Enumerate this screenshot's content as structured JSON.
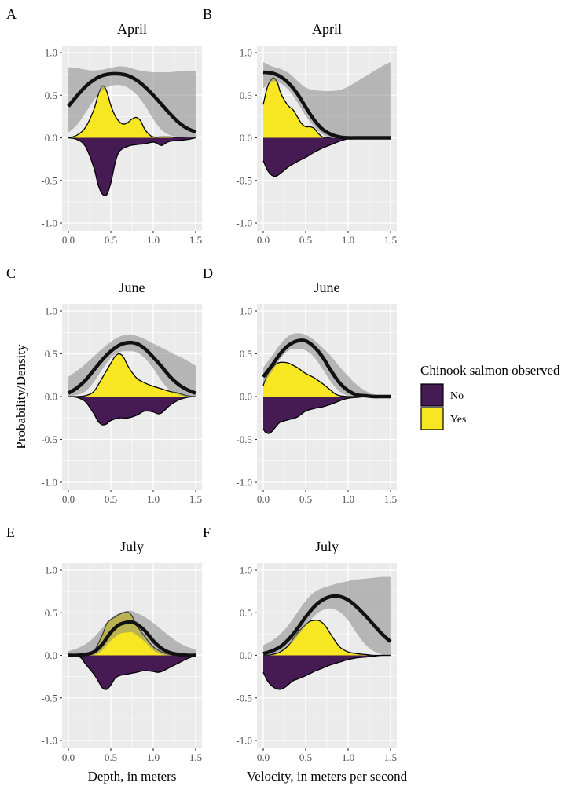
{
  "chart_data": [
    {
      "type": "area",
      "panel": "A",
      "title": "April",
      "xlabel": "",
      "ylabel": "Probability/Density",
      "xlim": [
        0,
        1.5
      ],
      "ylim": [
        -1.0,
        1.0
      ],
      "xticks": [
        "0.0",
        "0.5",
        "1.0",
        "1.5"
      ],
      "yticks": [
        "1.0",
        "0.5",
        "0.0",
        "-0.5",
        "-1.0"
      ],
      "grid": true,
      "probability": {
        "x": [
          0.0,
          0.1,
          0.2,
          0.3,
          0.4,
          0.5,
          0.6,
          0.7,
          0.8,
          0.9,
          1.0,
          1.1,
          1.2,
          1.3,
          1.4,
          1.5
        ],
        "fit": [
          0.37,
          0.49,
          0.6,
          0.68,
          0.73,
          0.75,
          0.75,
          0.73,
          0.68,
          0.6,
          0.5,
          0.39,
          0.28,
          0.18,
          0.11,
          0.07
        ],
        "lower": [
          0.06,
          0.15,
          0.29,
          0.44,
          0.56,
          0.61,
          0.62,
          0.59,
          0.51,
          0.38,
          0.22,
          0.09,
          0.03,
          0.01,
          0.0,
          0.0
        ],
        "upper": [
          0.83,
          0.82,
          0.8,
          0.79,
          0.8,
          0.82,
          0.84,
          0.83,
          0.8,
          0.78,
          0.77,
          0.77,
          0.77,
          0.78,
          0.78,
          0.79
        ]
      },
      "density_yes": {
        "x": [
          0.0,
          0.1,
          0.2,
          0.3,
          0.35,
          0.4,
          0.45,
          0.5,
          0.55,
          0.6,
          0.65,
          0.7,
          0.75,
          0.8,
          0.85,
          0.9,
          0.95,
          1.0,
          1.1,
          1.2,
          1.3,
          1.4,
          1.5
        ],
        "y": [
          0.0,
          0.03,
          0.12,
          0.33,
          0.5,
          0.61,
          0.55,
          0.38,
          0.26,
          0.19,
          0.16,
          0.18,
          0.22,
          0.24,
          0.2,
          0.1,
          0.04,
          0.01,
          0.01,
          0.01,
          0.0,
          0.0,
          0.0
        ]
      },
      "density_no": {
        "x": [
          0.0,
          0.1,
          0.2,
          0.3,
          0.35,
          0.4,
          0.45,
          0.5,
          0.55,
          0.6,
          0.7,
          0.8,
          0.9,
          1.0,
          1.05,
          1.1,
          1.15,
          1.2,
          1.3,
          1.4,
          1.5
        ],
        "y": [
          0.0,
          -0.02,
          -0.1,
          -0.35,
          -0.55,
          -0.66,
          -0.67,
          -0.53,
          -0.3,
          -0.16,
          -0.1,
          -0.08,
          -0.07,
          -0.05,
          -0.07,
          -0.09,
          -0.06,
          -0.04,
          -0.03,
          -0.02,
          0.0
        ]
      }
    },
    {
      "type": "area",
      "panel": "B",
      "title": "April",
      "xlabel": "",
      "ylabel": "",
      "xlim": [
        0,
        1.5
      ],
      "ylim": [
        -1.0,
        1.0
      ],
      "xticks": [
        "0.0",
        "0.5",
        "1.0",
        "1.5"
      ],
      "yticks": [
        "1.0",
        "0.5",
        "0.0",
        "-0.5",
        "-1.0"
      ],
      "grid": true,
      "probability": {
        "x": [
          0.0,
          0.1,
          0.2,
          0.3,
          0.4,
          0.5,
          0.6,
          0.7,
          0.8,
          0.9,
          1.0,
          1.1,
          1.2,
          1.3,
          1.4,
          1.5
        ],
        "fit": [
          0.77,
          0.76,
          0.72,
          0.64,
          0.52,
          0.36,
          0.21,
          0.1,
          0.04,
          0.01,
          0.0,
          0.0,
          0.0,
          0.0,
          0.0,
          0.0
        ],
        "lower": [
          0.58,
          0.66,
          0.64,
          0.56,
          0.42,
          0.26,
          0.13,
          0.04,
          0.0,
          0.0,
          0.0,
          0.0,
          0.0,
          0.0,
          0.0,
          0.0
        ],
        "upper": [
          0.89,
          0.84,
          0.81,
          0.76,
          0.67,
          0.59,
          0.56,
          0.55,
          0.55,
          0.56,
          0.6,
          0.66,
          0.72,
          0.78,
          0.84,
          0.89
        ]
      },
      "density_yes": {
        "x": [
          0.0,
          0.05,
          0.1,
          0.13,
          0.17,
          0.2,
          0.25,
          0.3,
          0.35,
          0.4,
          0.45,
          0.5,
          0.55,
          0.6,
          0.65,
          0.7,
          0.75,
          0.8
        ],
        "y": [
          0.39,
          0.6,
          0.69,
          0.7,
          0.64,
          0.54,
          0.44,
          0.37,
          0.33,
          0.25,
          0.17,
          0.13,
          0.13,
          0.11,
          0.05,
          0.01,
          0.0,
          0.0
        ]
      },
      "density_no": {
        "x": [
          0.0,
          0.05,
          0.1,
          0.15,
          0.2,
          0.3,
          0.4,
          0.5,
          0.6,
          0.7,
          0.8,
          0.9,
          1.0,
          1.05
        ],
        "y": [
          -0.27,
          -0.38,
          -0.44,
          -0.45,
          -0.42,
          -0.34,
          -0.28,
          -0.23,
          -0.17,
          -0.12,
          -0.08,
          -0.04,
          -0.01,
          0.0
        ]
      }
    },
    {
      "type": "area",
      "panel": "C",
      "title": "June",
      "xlabel": "",
      "ylabel": "Probability/Density",
      "xlim": [
        0,
        1.5
      ],
      "ylim": [
        -1.0,
        1.0
      ],
      "xticks": [
        "0.0",
        "0.5",
        "1.0",
        "1.5"
      ],
      "yticks": [
        "1.0",
        "0.5",
        "0.0",
        "-0.5",
        "-1.0"
      ],
      "grid": true,
      "probability": {
        "x": [
          0.0,
          0.1,
          0.2,
          0.3,
          0.4,
          0.5,
          0.6,
          0.7,
          0.8,
          0.9,
          1.0,
          1.1,
          1.2,
          1.3,
          1.4,
          1.5
        ],
        "fit": [
          0.04,
          0.1,
          0.19,
          0.31,
          0.43,
          0.53,
          0.6,
          0.63,
          0.62,
          0.56,
          0.46,
          0.35,
          0.23,
          0.14,
          0.08,
          0.04
        ],
        "lower": [
          0.0,
          0.02,
          0.06,
          0.17,
          0.32,
          0.45,
          0.52,
          0.53,
          0.52,
          0.45,
          0.33,
          0.18,
          0.07,
          0.02,
          0.0,
          0.0
        ],
        "upper": [
          0.23,
          0.3,
          0.38,
          0.47,
          0.56,
          0.64,
          0.7,
          0.72,
          0.71,
          0.67,
          0.62,
          0.57,
          0.52,
          0.47,
          0.42,
          0.36
        ]
      },
      "density_yes": {
        "x": [
          0.0,
          0.1,
          0.2,
          0.3,
          0.4,
          0.5,
          0.55,
          0.6,
          0.65,
          0.7,
          0.8,
          0.9,
          1.0,
          1.1,
          1.2,
          1.3,
          1.4,
          1.5
        ],
        "y": [
          0.0,
          0.0,
          0.01,
          0.06,
          0.22,
          0.39,
          0.47,
          0.5,
          0.46,
          0.36,
          0.22,
          0.16,
          0.12,
          0.09,
          0.06,
          0.04,
          0.01,
          0.0
        ]
      },
      "density_no": {
        "x": [
          0.0,
          0.1,
          0.2,
          0.3,
          0.35,
          0.4,
          0.45,
          0.5,
          0.6,
          0.7,
          0.8,
          0.9,
          1.0,
          1.05,
          1.1,
          1.2,
          1.3,
          1.4,
          1.5
        ],
        "y": [
          0.0,
          -0.01,
          -0.06,
          -0.2,
          -0.29,
          -0.33,
          -0.32,
          -0.28,
          -0.25,
          -0.25,
          -0.22,
          -0.17,
          -0.18,
          -0.2,
          -0.19,
          -0.1,
          -0.04,
          -0.01,
          0.0
        ]
      }
    },
    {
      "type": "area",
      "panel": "D",
      "title": "June",
      "xlabel": "",
      "ylabel": "",
      "xlim": [
        0,
        1.5
      ],
      "ylim": [
        -1.0,
        1.0
      ],
      "xticks": [
        "0.0",
        "0.5",
        "1.0",
        "1.5"
      ],
      "yticks": [
        "1.0",
        "0.5",
        "0.0",
        "-0.5",
        "-1.0"
      ],
      "grid": true,
      "probability": {
        "x": [
          0.0,
          0.1,
          0.2,
          0.3,
          0.4,
          0.5,
          0.6,
          0.7,
          0.8,
          0.9,
          1.0,
          1.1,
          1.2,
          1.3,
          1.4,
          1.5
        ],
        "fit": [
          0.23,
          0.36,
          0.5,
          0.6,
          0.65,
          0.65,
          0.58,
          0.46,
          0.3,
          0.16,
          0.07,
          0.02,
          0.01,
          0.0,
          0.0,
          0.0
        ],
        "lower": [
          0.15,
          0.29,
          0.44,
          0.54,
          0.56,
          0.54,
          0.46,
          0.32,
          0.17,
          0.06,
          0.01,
          0.0,
          0.0,
          0.0,
          0.0,
          0.0
        ],
        "upper": [
          0.34,
          0.47,
          0.61,
          0.71,
          0.74,
          0.72,
          0.66,
          0.57,
          0.47,
          0.35,
          0.24,
          0.14,
          0.07,
          0.03,
          0.02,
          0.02
        ]
      },
      "density_yes": {
        "x": [
          0.0,
          0.05,
          0.1,
          0.15,
          0.2,
          0.25,
          0.3,
          0.4,
          0.5,
          0.6,
          0.7,
          0.8,
          0.85,
          0.9,
          1.0,
          1.1
        ],
        "y": [
          0.13,
          0.26,
          0.33,
          0.38,
          0.4,
          0.4,
          0.39,
          0.34,
          0.27,
          0.22,
          0.15,
          0.07,
          0.03,
          0.01,
          0.0,
          0.0
        ]
      },
      "density_no": {
        "x": [
          0.0,
          0.03,
          0.07,
          0.1,
          0.15,
          0.2,
          0.3,
          0.4,
          0.5,
          0.6,
          0.7,
          0.8,
          0.9,
          1.0,
          1.1,
          1.2
        ],
        "y": [
          -0.38,
          -0.42,
          -0.43,
          -0.41,
          -0.35,
          -0.3,
          -0.27,
          -0.24,
          -0.17,
          -0.14,
          -0.12,
          -0.09,
          -0.05,
          -0.02,
          -0.01,
          0.0
        ]
      }
    },
    {
      "type": "area",
      "panel": "E",
      "title": "July",
      "xlabel": "Depth, in meters",
      "ylabel": "Probability/Density",
      "xlim": [
        0,
        1.5
      ],
      "ylim": [
        -1.0,
        1.0
      ],
      "xticks": [
        "0.0",
        "0.5",
        "1.0",
        "1.5"
      ],
      "yticks": [
        "1.0",
        "0.5",
        "0.0",
        "-0.5",
        "-1.0"
      ],
      "grid": true,
      "probability": {
        "x": [
          0.0,
          0.1,
          0.2,
          0.3,
          0.4,
          0.5,
          0.6,
          0.7,
          0.75,
          0.8,
          0.9,
          1.0,
          1.1,
          1.2,
          1.3,
          1.4,
          1.5
        ],
        "fit": [
          0.0,
          0.0,
          0.01,
          0.04,
          0.13,
          0.27,
          0.36,
          0.39,
          0.39,
          0.37,
          0.29,
          0.17,
          0.08,
          0.03,
          0.01,
          0.0,
          0.0
        ],
        "lower": [
          0.0,
          0.0,
          0.0,
          0.0,
          0.06,
          0.17,
          0.25,
          0.27,
          0.27,
          0.24,
          0.16,
          0.06,
          0.01,
          0.0,
          0.0,
          0.0,
          0.0
        ],
        "upper": [
          0.05,
          0.08,
          0.13,
          0.21,
          0.32,
          0.43,
          0.5,
          0.52,
          0.52,
          0.5,
          0.45,
          0.38,
          0.3,
          0.22,
          0.15,
          0.1,
          0.07
        ]
      },
      "density_yes": {
        "x": [
          0.0,
          0.1,
          0.2,
          0.3,
          0.4,
          0.45,
          0.5,
          0.55,
          0.6,
          0.65,
          0.7,
          0.75,
          0.8,
          0.9,
          1.0,
          1.1,
          1.2,
          1.3,
          1.5
        ],
        "y": [
          0.0,
          0.0,
          0.01,
          0.05,
          0.24,
          0.37,
          0.42,
          0.45,
          0.48,
          0.5,
          0.51,
          0.46,
          0.36,
          0.22,
          0.1,
          0.04,
          0.01,
          0.0,
          0.0
        ]
      },
      "density_no": {
        "x": [
          0.0,
          0.1,
          0.15,
          0.2,
          0.3,
          0.35,
          0.4,
          0.45,
          0.5,
          0.55,
          0.6,
          0.7,
          0.8,
          0.9,
          1.0,
          1.05,
          1.1,
          1.2,
          1.3,
          1.4,
          1.5
        ],
        "y": [
          0.0,
          -0.01,
          -0.03,
          -0.1,
          -0.22,
          -0.3,
          -0.38,
          -0.4,
          -0.35,
          -0.27,
          -0.24,
          -0.22,
          -0.2,
          -0.18,
          -0.19,
          -0.2,
          -0.19,
          -0.14,
          -0.09,
          -0.04,
          0.0
        ]
      }
    },
    {
      "type": "area",
      "panel": "F",
      "title": "July",
      "xlabel": "Velocity, in meters per second",
      "ylabel": "",
      "xlim": [
        0,
        1.5
      ],
      "ylim": [
        -1.0,
        1.0
      ],
      "xticks": [
        "0.0",
        "0.5",
        "1.0",
        "1.5"
      ],
      "yticks": [
        "1.0",
        "0.5",
        "0.0",
        "-0.5",
        "-1.0"
      ],
      "grid": true,
      "probability": {
        "x": [
          0.0,
          0.1,
          0.2,
          0.3,
          0.4,
          0.5,
          0.6,
          0.7,
          0.8,
          0.9,
          1.0,
          1.1,
          1.2,
          1.3,
          1.4,
          1.5
        ],
        "fit": [
          0.02,
          0.05,
          0.1,
          0.19,
          0.31,
          0.45,
          0.57,
          0.65,
          0.69,
          0.69,
          0.65,
          0.57,
          0.47,
          0.36,
          0.25,
          0.16
        ],
        "lower": [
          0.0,
          0.01,
          0.05,
          0.12,
          0.22,
          0.35,
          0.46,
          0.53,
          0.55,
          0.51,
          0.41,
          0.26,
          0.13,
          0.05,
          0.01,
          0.0
        ],
        "upper": [
          0.12,
          0.17,
          0.25,
          0.36,
          0.5,
          0.64,
          0.74,
          0.79,
          0.82,
          0.85,
          0.87,
          0.89,
          0.9,
          0.91,
          0.92,
          0.92
        ]
      },
      "density_yes": {
        "x": [
          0.0,
          0.1,
          0.2,
          0.3,
          0.4,
          0.5,
          0.55,
          0.6,
          0.65,
          0.7,
          0.75,
          0.8,
          0.9,
          1.0,
          1.1,
          1.2,
          1.3,
          1.4,
          1.5
        ],
        "y": [
          0.0,
          0.01,
          0.04,
          0.12,
          0.26,
          0.36,
          0.4,
          0.41,
          0.41,
          0.38,
          0.32,
          0.24,
          0.1,
          0.04,
          0.02,
          0.01,
          0.0,
          0.0,
          0.0
        ]
      },
      "density_no": {
        "x": [
          0.0,
          0.05,
          0.1,
          0.15,
          0.2,
          0.25,
          0.3,
          0.35,
          0.4,
          0.5,
          0.6,
          0.7,
          0.8,
          0.9,
          1.0,
          1.1,
          1.2,
          1.3,
          1.4,
          1.5
        ],
        "y": [
          -0.2,
          -0.3,
          -0.36,
          -0.39,
          -0.4,
          -0.38,
          -0.34,
          -0.3,
          -0.28,
          -0.24,
          -0.19,
          -0.15,
          -0.11,
          -0.08,
          -0.05,
          -0.03,
          -0.02,
          -0.01,
          0.0,
          0.0
        ]
      }
    }
  ],
  "figure": {
    "panel_tags": [
      "A",
      "B",
      "C",
      "D",
      "E",
      "F"
    ],
    "y_axis_title": "Probability/Density",
    "x_axis_titles": [
      "Depth, in meters",
      "Velocity, in meters per second"
    ]
  },
  "legend": {
    "title": "Chinook salmon observed",
    "placement": "right",
    "items": [
      {
        "label": "No",
        "color": "#440154"
      },
      {
        "label": "Yes",
        "color": "#FDE725"
      }
    ]
  },
  "colors": {
    "panel_bg": "#EBEBEB",
    "grid": "#FFFFFF",
    "ribbon": "#7F7F7F",
    "fit_line": "#111111",
    "no": "#461A53",
    "yes": "#F7E723"
  }
}
